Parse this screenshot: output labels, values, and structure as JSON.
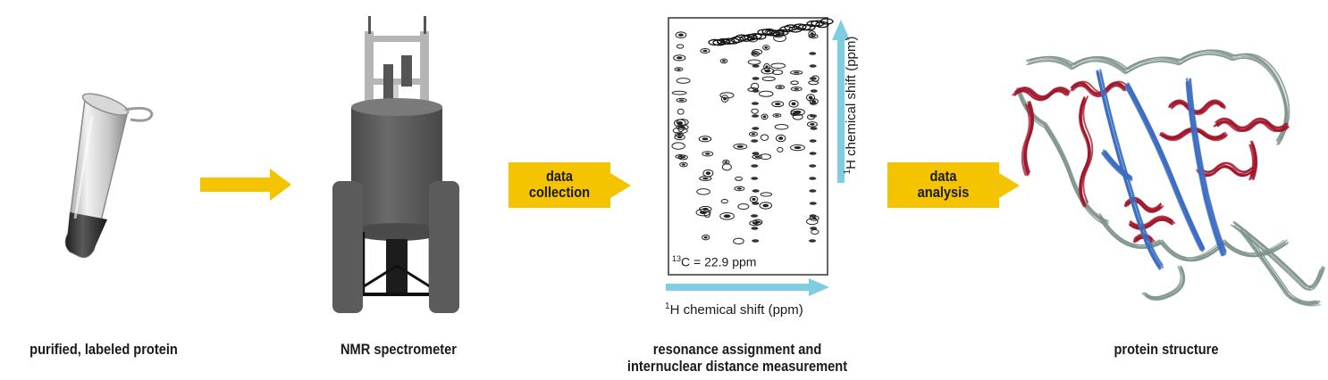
{
  "steps": {
    "sample": "purified, labeled protein",
    "spectrometer": "NMR spectrometer",
    "analysis_line1": "resonance assignment and",
    "analysis_line2": "internuclear distance measurement",
    "structure": "protein structure"
  },
  "arrow_labels": {
    "collection_line1": "data",
    "collection_line2": "collection",
    "analysis_line1": "data",
    "analysis_line2": "analysis"
  },
  "spectrum": {
    "x_axis_sup": "1",
    "x_axis_label": "H chemical shift (ppm)",
    "y_axis_sup": "1",
    "y_axis_label": "H chemical shift (ppm)",
    "plane_sup": "13",
    "plane_label": "C = 22.9 ppm"
  },
  "colors": {
    "arrow": "#f5c400",
    "axis_arrow": "#7fcde0",
    "helix": "#a0142a",
    "strand": "#3c6ec0",
    "coil": "#7f948c",
    "spectrometer_body": "#5b5b5b"
  }
}
